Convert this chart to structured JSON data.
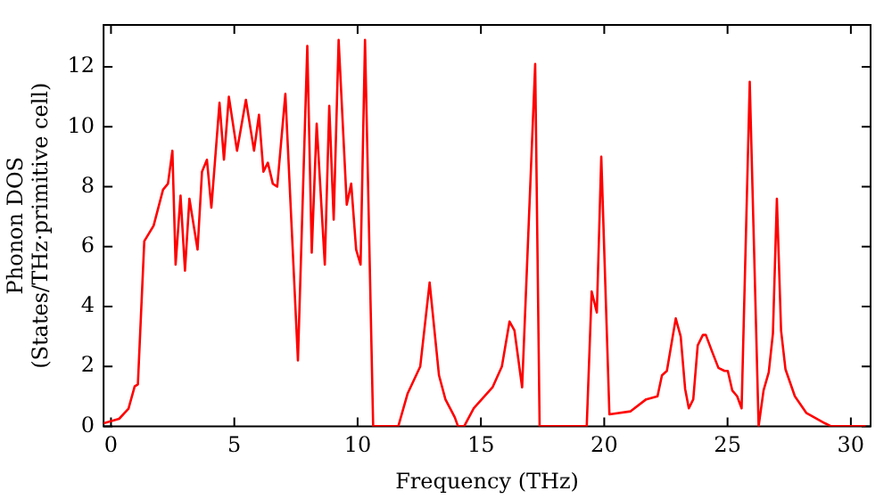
{
  "chart_data": {
    "type": "line",
    "xlabel": "Frequency (THz)",
    "ylabel": "Phonon DOS\n(States/THz·primitive cell)",
    "xlim": [
      -0.3,
      30.8
    ],
    "ylim": [
      0,
      13.4
    ],
    "xticks": [
      0,
      5,
      10,
      15,
      20,
      25,
      30
    ],
    "yticks": [
      0,
      2,
      4,
      6,
      8,
      10,
      12
    ],
    "grid": false,
    "legend": false,
    "marker": "none",
    "line_style": "solid",
    "series": [
      {
        "color": "#ff0000",
        "x": [
          -0.3,
          0.33,
          0.71,
          0.96,
          1.09,
          1.35,
          1.73,
          2.11,
          2.31,
          2.49,
          2.62,
          2.82,
          3.0,
          3.18,
          3.51,
          3.69,
          3.89,
          4.07,
          4.4,
          4.58,
          4.78,
          5.11,
          5.47,
          5.8,
          6.0,
          6.18,
          6.36,
          6.56,
          6.74,
          7.07,
          7.58,
          7.96,
          8.14,
          8.34,
          8.67,
          8.85,
          9.03,
          9.23,
          9.56,
          9.74,
          9.94,
          10.12,
          10.3,
          10.63,
          11.65,
          12.03,
          12.54,
          12.92,
          13.3,
          13.56,
          13.94,
          14.07,
          14.32,
          14.71,
          15.47,
          15.85,
          16.16,
          16.36,
          16.67,
          17.2,
          17.38,
          19.29,
          19.49,
          19.7,
          19.88,
          20.21,
          21.07,
          21.7,
          22.16,
          22.34,
          22.54,
          22.9,
          23.1,
          23.28,
          23.43,
          23.61,
          23.79,
          24.0,
          24.12,
          24.37,
          24.63,
          24.88,
          25.01,
          25.19,
          25.39,
          25.57,
          25.9,
          26.26,
          26.46,
          26.67,
          26.84,
          27.0,
          27.17,
          27.35,
          27.73,
          28.19,
          28.95,
          29.2,
          30.6
        ],
        "values": [
          0.1,
          0.25,
          0.59,
          1.33,
          1.4,
          6.18,
          6.7,
          7.9,
          8.1,
          9.2,
          5.4,
          7.7,
          5.2,
          7.6,
          5.9,
          8.5,
          8.9,
          7.3,
          10.8,
          8.9,
          11.0,
          9.2,
          10.9,
          9.2,
          10.4,
          8.5,
          8.8,
          8.1,
          8.0,
          11.1,
          2.2,
          12.7,
          5.8,
          10.1,
          5.4,
          10.7,
          6.9,
          12.9,
          7.4,
          8.1,
          5.9,
          5.4,
          12.9,
          0,
          0,
          1.1,
          2.0,
          4.8,
          1.7,
          0.9,
          0.3,
          0,
          0,
          0.6,
          1.3,
          2.0,
          3.5,
          3.2,
          1.3,
          12.1,
          0,
          0,
          4.5,
          3.8,
          9.0,
          0.4,
          0.5,
          0.9,
          1.0,
          1.7,
          1.85,
          3.6,
          3.0,
          1.25,
          0.6,
          0.9,
          2.7,
          3.05,
          3.05,
          2.5,
          1.95,
          1.85,
          1.85,
          1.2,
          1.0,
          0.6,
          11.5,
          0,
          1.2,
          1.8,
          3.1,
          7.6,
          3.2,
          1.9,
          1.0,
          0.45,
          0.1,
          0,
          0
        ]
      }
    ]
  }
}
